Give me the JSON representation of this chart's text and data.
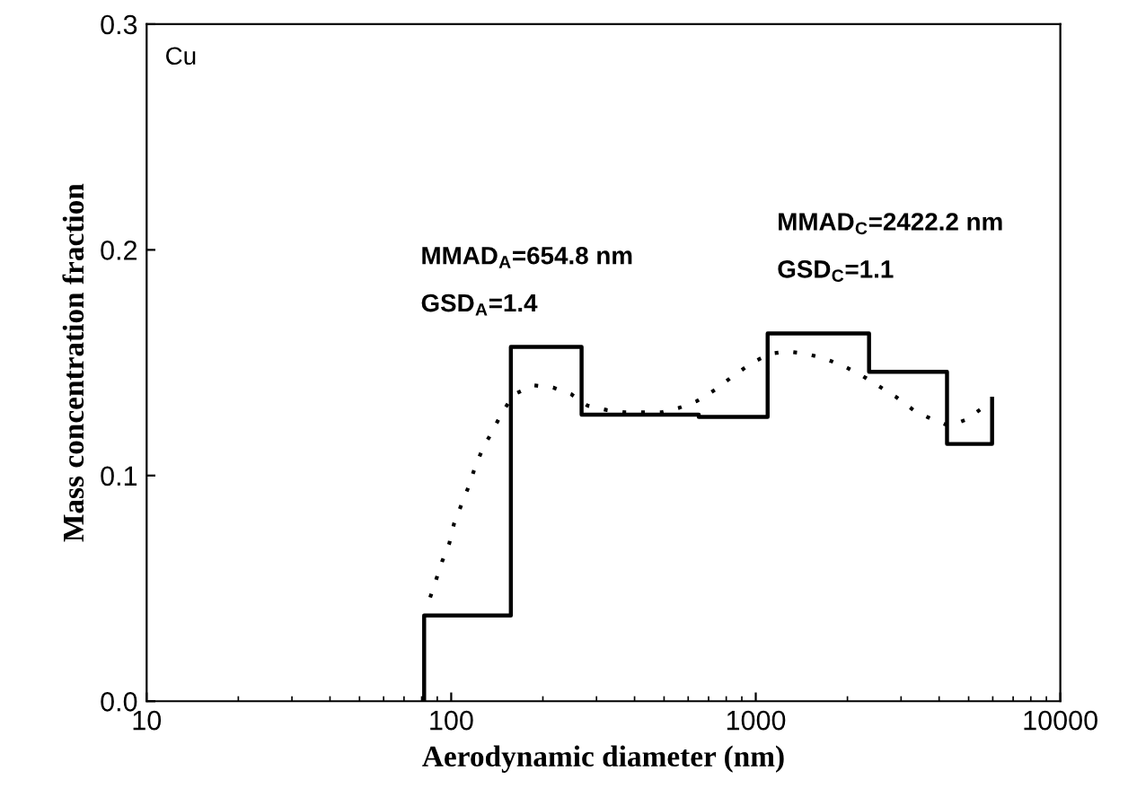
{
  "chart_data": {
    "type": "step",
    "xlabel": "Aerodynamic diameter (nm)",
    "ylabel": "Mass concentration fraction",
    "log": "x",
    "xlim": [
      10,
      10000
    ],
    "xticks": [
      10,
      100,
      1000,
      10000
    ],
    "ylim": [
      0,
      0.3
    ],
    "yticks": [
      {
        "value": 0,
        "label": "0.0"
      },
      0.1,
      0.2,
      0.3
    ],
    "grid": false,
    "legend": false,
    "annotations": [
      "Cu",
      "MMAD$_{A}$=654.8 nm",
      "GSD$_{A}$=1.4",
      "MMAD$_{C}$=2422.2 nm",
      "GSD$_{C}$=1.1"
    ],
    "series": [
      {
        "color": "#000000",
        "line_style": "solid",
        "x": [
          81.5,
          81.5,
          157,
          268,
          650,
          1094,
          2355,
          4246,
          5970
        ],
        "values": [
          0,
          0.038,
          0.157,
          0.127,
          0.126,
          0.163,
          0.146,
          0.114,
          0.134
        ]
      },
      {
        "type": "line",
        "color": "#000000",
        "line_style": "dotted",
        "x": [
          85.3,
          89.3,
          93.4,
          98.6,
          102.3,
          108,
          114,
          120,
          127,
          137,
          147,
          161,
          186,
          216,
          248,
          280,
          325,
          372,
          427,
          489,
          560,
          641,
          735,
          841,
          973,
          1114,
          1271,
          1456,
          1667,
          1910,
          2191,
          2510,
          2877,
          3296,
          3776,
          4325,
          4955,
          5675
        ],
        "values": [
          0.046,
          0.054,
          0.062,
          0.07,
          0.079,
          0.087,
          0.095,
          0.104,
          0.112,
          0.12,
          0.128,
          0.136,
          0.14,
          0.139,
          0.136,
          0.131,
          0.129,
          0.128,
          0.128,
          0.128,
          0.13,
          0.133,
          0.138,
          0.144,
          0.15,
          0.154,
          0.155,
          0.154,
          0.152,
          0.149,
          0.145,
          0.14,
          0.135,
          0.129,
          0.125,
          0.122,
          0.125,
          0.131
        ]
      }
    ]
  }
}
